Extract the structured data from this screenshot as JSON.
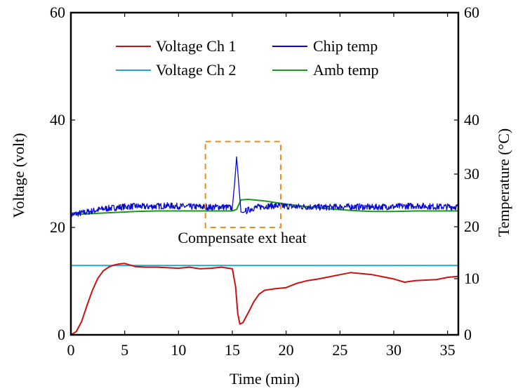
{
  "chart_data": {
    "type": "line",
    "title": "",
    "xlabel": "Time (min)",
    "ylabel_left": "Voltage (volt)",
    "ylabel_right": "Temperature (°C)",
    "xlim": [
      0,
      36
    ],
    "ylim_left": [
      0,
      60
    ],
    "ylim_right": [
      0,
      60
    ],
    "x_ticks": [
      0,
      5,
      10,
      15,
      20,
      25,
      30,
      35
    ],
    "y_ticks_left": [
      0,
      20,
      40,
      60
    ],
    "y_ticks_right": [
      0,
      10,
      20,
      30,
      40,
      60
    ],
    "right_axis_scale": "piecewise-linear (0-40 compressed, 40-60 matches left axis)",
    "grid": false,
    "legend_position": "top",
    "series": [
      {
        "name": "Voltage Ch 1",
        "axis": "left",
        "color": "#cc1111",
        "x": [
          0,
          0.5,
          1,
          1.5,
          2,
          2.5,
          3,
          3.5,
          4,
          4.5,
          5,
          5.5,
          6,
          7,
          8,
          9,
          10,
          11,
          12,
          13,
          14,
          15,
          15.3,
          15.5,
          15.7,
          16,
          16.5,
          17,
          17.5,
          18,
          19,
          20,
          21,
          22,
          23,
          24,
          25,
          26,
          27,
          28,
          29,
          30,
          31,
          32,
          33,
          34,
          35,
          36
        ],
        "y": [
          0,
          0.6,
          2.5,
          5.5,
          8.3,
          10.5,
          11.9,
          12.6,
          13.0,
          13.2,
          13.3,
          13.0,
          12.7,
          12.6,
          12.6,
          12.5,
          12.4,
          12.6,
          12.3,
          12.4,
          12.6,
          12.3,
          9.0,
          4.0,
          2.0,
          2.3,
          4.2,
          6.2,
          7.6,
          8.3,
          8.6,
          8.8,
          9.6,
          10.1,
          10.4,
          10.8,
          11.2,
          11.6,
          11.4,
          11.2,
          10.8,
          10.4,
          9.8,
          10.1,
          10.2,
          10.3,
          10.7,
          10.9
        ]
      },
      {
        "name": "Voltage Ch 2",
        "axis": "left",
        "color": "#22a7cc",
        "x": [
          0,
          36
        ],
        "y": [
          12.9,
          12.9
        ]
      },
      {
        "name": "Chip temp",
        "axis": "right",
        "color": "#0a0acc",
        "noise": 0.6,
        "x": [
          0,
          1,
          2,
          3,
          4,
          5,
          6,
          7,
          8,
          9,
          10,
          11,
          12,
          13,
          14,
          15,
          15.2,
          15.4,
          15.6,
          15.8,
          16,
          16.5,
          17,
          18,
          19,
          20,
          21,
          22,
          23,
          24,
          25,
          26,
          27,
          28,
          29,
          30,
          31,
          32,
          33,
          34,
          35,
          36
        ],
        "y": [
          22.3,
          22.6,
          23.0,
          23.4,
          23.6,
          23.8,
          23.9,
          23.8,
          23.9,
          24.0,
          23.9,
          23.8,
          23.8,
          23.7,
          23.8,
          23.6,
          28.0,
          33.2,
          28.0,
          22.8,
          22.7,
          23.2,
          23.6,
          23.9,
          24.0,
          23.9,
          23.8,
          23.8,
          23.7,
          23.7,
          23.8,
          23.8,
          23.8,
          23.7,
          23.8,
          23.8,
          23.9,
          24.0,
          23.9,
          23.8,
          23.8,
          23.8
        ]
      },
      {
        "name": "Amb temp",
        "axis": "right",
        "color": "#1a9a1a",
        "x": [
          0,
          2,
          4,
          6,
          8,
          10,
          12,
          14,
          15,
          15.4,
          15.8,
          16.5,
          18,
          20,
          22,
          24,
          26,
          28,
          30,
          32,
          34,
          36
        ],
        "y": [
          22.3,
          22.5,
          22.7,
          22.9,
          23.0,
          23.0,
          23.0,
          23.0,
          23.0,
          23.3,
          25.1,
          25.2,
          24.9,
          24.3,
          23.8,
          23.4,
          23.1,
          22.9,
          22.9,
          23.0,
          23.0,
          23.0
        ]
      }
    ],
    "annotations": [
      {
        "text": "Compensate ext heat",
        "box_x": [
          12.5,
          19.5
        ],
        "box_y_left": [
          20,
          36
        ],
        "box_color": "#f08c1e"
      }
    ]
  }
}
